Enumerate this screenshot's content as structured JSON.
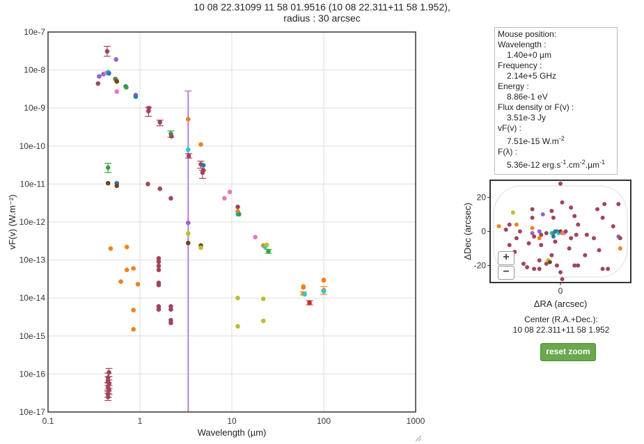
{
  "title_line1": "10 08 22.31099 11 58 01.9516 (10 08 22.311+11 58 1.952),",
  "title_line2": "radius : 30 arcsec",
  "info": {
    "heading": "Mouse position:",
    "wavelength_label": "Wavelength :",
    "wavelength_value": "1.40e+0 µm",
    "frequency_label": "Frequency :",
    "frequency_value": "2.14e+5 GHz",
    "energy_label": "Energy :",
    "energy_value": "8.86e-1 eV",
    "flux_label": "Flux density or F(v) :",
    "flux_value": "3.51e-3 Jy",
    "vfv_label": "vF(v) :",
    "vfv_value": "7.51e-15 W.m",
    "vfv_exp": "-2",
    "flam_label": "F(λ) :",
    "flam_value": "5.36e-12 erg.s",
    "flam_exp1": "-1",
    "flam_mid": ".cm",
    "flam_exp2": "-2",
    "flam_mid2": ".µm",
    "flam_exp3": "-1"
  },
  "center_label": "Center (R.A.+Dec.):",
  "center_value": "10 08 22.311+11 58 1.952",
  "reset_label": "reset zoom",
  "zoom_in": "+",
  "zoom_out": "−",
  "colors": {
    "maroon": "#a0465a",
    "orange": "#f0821e",
    "green": "#3ca03c",
    "blue": "#2878b4",
    "cyan": "#28c8d2",
    "purple": "#9664c8",
    "pink": "#e678c8",
    "olive": "#bebe28",
    "brown": "#6e4614",
    "red": "#d22828",
    "vline": "#b482d2"
  },
  "chart_data": {
    "type": "scatter",
    "xscale": "log",
    "yscale": "log",
    "xlabel": "Wavelength (µm)",
    "ylabel": "vF(v) (W.m⁻²)",
    "xlim": [
      0.1,
      1000
    ],
    "ylim": [
      1e-17,
      1e-07
    ],
    "xticks": [
      0.1,
      1,
      10,
      100,
      1000
    ],
    "xtick_labels": [
      "0.1",
      "1",
      "10",
      "100",
      "1000"
    ],
    "yticks": [
      1e-07,
      1e-08,
      1e-09,
      1e-10,
      1e-11,
      1e-12,
      1e-13,
      1e-14,
      1e-15,
      1e-16,
      1e-17
    ],
    "ytick_labels": [
      "10e-7",
      "10e-8",
      "10e-9",
      "10e-10",
      "10e-11",
      "10e-12",
      "10e-13",
      "10e-14",
      "10e-15",
      "10e-16",
      "10e-17"
    ],
    "grid": true,
    "vertical_band": {
      "x": 3.35,
      "ylow": 1e-17,
      "yhigh": 2.8e-09,
      "color": "vline"
    },
    "points": [
      {
        "x": 0.44,
        "y": 3.1e-08,
        "c": "maroon",
        "ylo": 2.3e-08,
        "yhi": 4.2e-08
      },
      {
        "x": 0.55,
        "y": 1.9e-08,
        "c": "purple"
      },
      {
        "x": 0.36,
        "y": 6.8e-09,
        "c": "purple"
      },
      {
        "x": 0.4,
        "y": 7.8e-09,
        "c": "purple"
      },
      {
        "x": 0.43,
        "y": 8.3e-09,
        "c": "pink"
      },
      {
        "x": 0.45,
        "y": 8.8e-09,
        "c": "cyan"
      },
      {
        "x": 0.46,
        "y": 8.2e-09,
        "c": "blue"
      },
      {
        "x": 0.35,
        "y": 4.4e-09,
        "c": "maroon"
      },
      {
        "x": 0.54,
        "y": 5.8e-09,
        "c": "maroon"
      },
      {
        "x": 0.55,
        "y": 5.5e-09,
        "c": "green"
      },
      {
        "x": 0.56,
        "y": 5e-09,
        "c": "brown"
      },
      {
        "x": 0.56,
        "y": 2.7e-09,
        "c": "pink"
      },
      {
        "x": 0.7,
        "y": 3.7e-09,
        "c": "blue"
      },
      {
        "x": 0.71,
        "y": 3.5e-09,
        "c": "green"
      },
      {
        "x": 0.9,
        "y": 2.2e-09,
        "c": "purple"
      },
      {
        "x": 0.9,
        "y": 2e-09,
        "c": "blue"
      },
      {
        "x": 1.24,
        "y": 8.3e-10,
        "c": "maroon",
        "ylo": 6e-10,
        "yhi": 1.05e-09
      },
      {
        "x": 1.25,
        "y": 1e-09,
        "c": "maroon"
      },
      {
        "x": 1.65,
        "y": 4.2e-10,
        "c": "maroon",
        "ylo": 3.4e-10,
        "yhi": 4.8e-10
      },
      {
        "x": 2.17,
        "y": 2.1e-10,
        "c": "green",
        "ylo": 1.7e-10,
        "yhi": 2.5e-10
      },
      {
        "x": 2.2,
        "y": 1.8e-10,
        "c": "maroon"
      },
      {
        "x": 3.35,
        "y": 5.1e-10,
        "c": "orange"
      },
      {
        "x": 3.35,
        "y": 8e-11,
        "c": "cyan"
      },
      {
        "x": 3.4,
        "y": 5.5e-11,
        "c": "maroon",
        "ylo": 4.8e-11,
        "yhi": 6.3e-11
      },
      {
        "x": 4.6,
        "y": 1.1e-10,
        "c": "orange"
      },
      {
        "x": 4.6,
        "y": 3.3e-11,
        "c": "maroon",
        "ylo": 2.6e-11,
        "yhi": 4e-11
      },
      {
        "x": 4.9,
        "y": 3.1e-11,
        "c": "blue"
      },
      {
        "x": 4.8,
        "y": 2e-11,
        "c": "maroon",
        "ylo": 1.4e-11,
        "yhi": 2.3e-11
      },
      {
        "x": 4.9,
        "y": 2.3e-11,
        "c": "maroon"
      },
      {
        "x": 0.45,
        "y": 2.7e-11,
        "c": "green",
        "ylo": 2e-11,
        "yhi": 3.5e-11
      },
      {
        "x": 0.45,
        "y": 1.05e-11,
        "c": "brown"
      },
      {
        "x": 0.56,
        "y": 1.05e-11,
        "c": "blue"
      },
      {
        "x": 0.56,
        "y": 9e-12,
        "c": "brown"
      },
      {
        "x": 1.22,
        "y": 1e-11,
        "c": "maroon"
      },
      {
        "x": 1.65,
        "y": 7.5e-12,
        "c": "maroon"
      },
      {
        "x": 2.17,
        "y": 4.2e-12,
        "c": "maroon"
      },
      {
        "x": 8.3,
        "y": 4.2e-12,
        "c": "pink"
      },
      {
        "x": 9.5,
        "y": 6.2e-12,
        "c": "pink"
      },
      {
        "x": 11.6,
        "y": 2.5e-12,
        "c": "maroon"
      },
      {
        "x": 11.6,
        "y": 1.9e-12,
        "c": "orange"
      },
      {
        "x": 11.6,
        "y": 1.6e-12,
        "c": "cyan"
      },
      {
        "x": 12.0,
        "y": 1.6e-12,
        "c": "green"
      },
      {
        "x": 3.35,
        "y": 9.5e-13,
        "c": "purple"
      },
      {
        "x": 3.35,
        "y": 5e-13,
        "c": "olive"
      },
      {
        "x": 3.35,
        "y": 2.8e-13,
        "c": "brown"
      },
      {
        "x": 4.6,
        "y": 2.4e-13,
        "c": "brown"
      },
      {
        "x": 4.6,
        "y": 2.1e-13,
        "c": "olive"
      },
      {
        "x": 18,
        "y": 4e-13,
        "c": "pink"
      },
      {
        "x": 22,
        "y": 2.4e-13,
        "c": "orange"
      },
      {
        "x": 23,
        "y": 2.2e-13,
        "c": "cyan"
      },
      {
        "x": 24,
        "y": 2.5e-13,
        "c": "olive"
      },
      {
        "x": 25,
        "y": 1.7e-13,
        "c": "green",
        "ylo": 1.5e-13,
        "yhi": 1.9e-13
      },
      {
        "x": 0.48,
        "y": 2e-13,
        "c": "orange"
      },
      {
        "x": 0.72,
        "y": 2.2e-13,
        "c": "orange"
      },
      {
        "x": 1.6,
        "y": 1.1e-13,
        "c": "maroon"
      },
      {
        "x": 1.6,
        "y": 9e-14,
        "c": "maroon"
      },
      {
        "x": 1.6,
        "y": 7e-14,
        "c": "maroon"
      },
      {
        "x": 1.6,
        "y": 5.5e-14,
        "c": "maroon"
      },
      {
        "x": 0.72,
        "y": 5.5e-14,
        "c": "orange"
      },
      {
        "x": 0.85,
        "y": 6e-14,
        "c": "orange"
      },
      {
        "x": 0.62,
        "y": 2.7e-14,
        "c": "orange",
        "xlo": 0.58,
        "xhi": 0.66
      },
      {
        "x": 0.95,
        "y": 2.3e-14,
        "c": "orange"
      },
      {
        "x": 1.6,
        "y": 2.5e-14,
        "c": "maroon"
      },
      {
        "x": 1.6,
        "y": 2.2e-14,
        "c": "maroon"
      },
      {
        "x": 1.6,
        "y": 6e-15,
        "c": "maroon"
      },
      {
        "x": 1.6,
        "y": 5e-15,
        "c": "maroon"
      },
      {
        "x": 2.17,
        "y": 6e-15,
        "c": "maroon"
      },
      {
        "x": 2.17,
        "y": 5e-15,
        "c": "maroon"
      },
      {
        "x": 2.17,
        "y": 2.6e-15,
        "c": "maroon"
      },
      {
        "x": 2.17,
        "y": 2.2e-15,
        "c": "maroon"
      },
      {
        "x": 0.85,
        "y": 4.8e-15,
        "c": "orange"
      },
      {
        "x": 0.85,
        "y": 1.5e-15,
        "c": "orange"
      },
      {
        "x": 11.6,
        "y": 1e-14,
        "c": "olive"
      },
      {
        "x": 11.6,
        "y": 1.8e-15,
        "c": "olive"
      },
      {
        "x": 22,
        "y": 9.5e-15,
        "c": "olive"
      },
      {
        "x": 22,
        "y": 2.5e-15,
        "c": "olive"
      },
      {
        "x": 60,
        "y": 2e-14,
        "c": "orange"
      },
      {
        "x": 60,
        "y": 1.9e-14,
        "c": "orange"
      },
      {
        "x": 60,
        "y": 1.3e-14,
        "c": "orange",
        "ylo": 1.2e-14,
        "yhi": 1.45e-14
      },
      {
        "x": 62,
        "y": 1.25e-14,
        "c": "cyan"
      },
      {
        "x": 70,
        "y": 7.5e-15,
        "c": "red",
        "ylo": 6.6e-15,
        "yhi": 8.5e-15
      },
      {
        "x": 100,
        "y": 3e-14,
        "c": "orange"
      },
      {
        "x": 100,
        "y": 2.9e-14,
        "c": "orange"
      },
      {
        "x": 100,
        "y": 1.6e-14,
        "c": "orange",
        "ylo": 1.25e-14,
        "yhi": 2e-14
      },
      {
        "x": 100,
        "y": 1.5e-14,
        "c": "cyan"
      },
      {
        "x": 0.45,
        "y": 8e-17,
        "c": "maroon",
        "ylo": 6e-17,
        "yhi": 1.05e-16
      },
      {
        "x": 0.45,
        "y": 6.5e-17,
        "c": "maroon",
        "ylo": 5e-17,
        "yhi": 8.5e-17
      },
      {
        "x": 0.46,
        "y": 5.5e-17,
        "c": "maroon",
        "ylo": 4.2e-17,
        "yhi": 7e-17
      },
      {
        "x": 0.45,
        "y": 4.5e-17,
        "c": "maroon",
        "ylo": 3.5e-17,
        "yhi": 5.8e-17
      },
      {
        "x": 0.46,
        "y": 3.8e-17,
        "c": "maroon",
        "ylo": 2.9e-17,
        "yhi": 5e-17
      },
      {
        "x": 0.45,
        "y": 3e-17,
        "c": "maroon",
        "ylo": 2.4e-17,
        "yhi": 3.8e-17
      },
      {
        "x": 0.45,
        "y": 2.5e-17,
        "c": "maroon",
        "ylo": 2e-17,
        "yhi": 3.1e-17
      },
      {
        "x": 0.46,
        "y": 1.1e-16,
        "c": "maroon",
        "ylo": 8.5e-17,
        "yhi": 1.4e-16
      }
    ],
    "sky_chart": {
      "xlabel": "ΔRA (arcsec)",
      "ylabel": "ΔDec (arcsec)",
      "xlim": [
        -40,
        40
      ],
      "ylim": [
        -30,
        30
      ],
      "xticks": [
        0
      ],
      "yticks": [
        20,
        0,
        -20
      ],
      "points": [
        {
          "x": 0,
          "y": 28,
          "c": "maroon"
        },
        {
          "x": -27,
          "y": 11,
          "c": "olive"
        },
        {
          "x": -16,
          "y": 13,
          "c": "maroon"
        },
        {
          "x": -16,
          "y": 8,
          "c": "maroon"
        },
        {
          "x": -16,
          "y": 2,
          "c": "orange"
        },
        {
          "x": -10,
          "y": 10,
          "c": "purple"
        },
        {
          "x": -5,
          "y": 12,
          "c": "maroon"
        },
        {
          "x": -4,
          "y": 8,
          "c": "maroon"
        },
        {
          "x": 1,
          "y": 17,
          "c": "maroon"
        },
        {
          "x": 6,
          "y": 14,
          "c": "maroon"
        },
        {
          "x": 8,
          "y": 9,
          "c": "maroon"
        },
        {
          "x": 25,
          "y": 16,
          "c": "maroon"
        },
        {
          "x": 33,
          "y": 16,
          "c": "maroon"
        },
        {
          "x": 21,
          "y": 13,
          "c": "maroon"
        },
        {
          "x": 24,
          "y": 8,
          "c": "maroon"
        },
        {
          "x": -35,
          "y": 3,
          "c": "orange"
        },
        {
          "x": -31,
          "y": 1,
          "c": "maroon"
        },
        {
          "x": -29,
          "y": 4,
          "c": "maroon"
        },
        {
          "x": -25,
          "y": 4,
          "c": "orange"
        },
        {
          "x": -23,
          "y": 0,
          "c": "maroon"
        },
        {
          "x": -16,
          "y": -1,
          "c": "purple"
        },
        {
          "x": -15,
          "y": -3,
          "c": "maroon"
        },
        {
          "x": -12,
          "y": 0,
          "c": "purple"
        },
        {
          "x": -11,
          "y": -2,
          "c": "maroon"
        },
        {
          "x": -8,
          "y": -1,
          "c": "maroon"
        },
        {
          "x": -5,
          "y": -1,
          "c": "cyan"
        },
        {
          "x": -4,
          "y": -1,
          "c": "green"
        },
        {
          "x": -3,
          "y": 0,
          "c": "blue"
        },
        {
          "x": -2,
          "y": 0,
          "c": "blue"
        },
        {
          "x": -1,
          "y": -1,
          "c": "cyan"
        },
        {
          "x": 0,
          "y": 0,
          "c": "brown"
        },
        {
          "x": 1,
          "y": -1,
          "c": "orange"
        },
        {
          "x": 2,
          "y": -1,
          "c": "pink"
        },
        {
          "x": 3,
          "y": 0,
          "c": "maroon"
        },
        {
          "x": -4,
          "y": -3,
          "c": "blue"
        },
        {
          "x": -12,
          "y": -4,
          "c": "orange"
        },
        {
          "x": -25,
          "y": -4,
          "c": "maroon"
        },
        {
          "x": -29,
          "y": -8,
          "c": "maroon"
        },
        {
          "x": -18,
          "y": -7,
          "c": "maroon"
        },
        {
          "x": -11,
          "y": -8,
          "c": "maroon"
        },
        {
          "x": -3,
          "y": -6,
          "c": "maroon"
        },
        {
          "x": 6,
          "y": -4,
          "c": "maroon"
        },
        {
          "x": 10,
          "y": 4,
          "c": "maroon"
        },
        {
          "x": 9,
          "y": -2,
          "c": "maroon"
        },
        {
          "x": 15,
          "y": -2,
          "c": "maroon"
        },
        {
          "x": 19,
          "y": -4,
          "c": "maroon"
        },
        {
          "x": 22,
          "y": -11,
          "c": "maroon"
        },
        {
          "x": 30,
          "y": 3,
          "c": "maroon"
        },
        {
          "x": 33,
          "y": -3,
          "c": "purple"
        },
        {
          "x": 34,
          "y": -4,
          "c": "maroon"
        },
        {
          "x": 34,
          "y": -10,
          "c": "orange"
        },
        {
          "x": -26,
          "y": -12,
          "c": "maroon"
        },
        {
          "x": -21,
          "y": -19,
          "c": "maroon"
        },
        {
          "x": -19,
          "y": -21,
          "c": "maroon"
        },
        {
          "x": -15,
          "y": -22,
          "c": "maroon"
        },
        {
          "x": -12,
          "y": -22,
          "c": "maroon"
        },
        {
          "x": -8,
          "y": -19,
          "c": "maroon"
        },
        {
          "x": -7,
          "y": -17,
          "c": "olive"
        },
        {
          "x": -6,
          "y": -18,
          "c": "brown"
        },
        {
          "x": -12,
          "y": -17,
          "c": "maroon"
        },
        {
          "x": -5,
          "y": -14,
          "c": "maroon"
        },
        {
          "x": 0,
          "y": -24,
          "c": "maroon"
        },
        {
          "x": 1,
          "y": -28,
          "c": "maroon"
        },
        {
          "x": -2,
          "y": -20,
          "c": "maroon"
        },
        {
          "x": 8,
          "y": -20,
          "c": "maroon"
        },
        {
          "x": 10,
          "y": -20,
          "c": "maroon"
        },
        {
          "x": 14,
          "y": -14,
          "c": "maroon"
        },
        {
          "x": 24,
          "y": -22,
          "c": "maroon"
        },
        {
          "x": 27,
          "y": -22,
          "c": "maroon"
        },
        {
          "x": 5,
          "y": -10,
          "c": "maroon"
        }
      ]
    }
  }
}
